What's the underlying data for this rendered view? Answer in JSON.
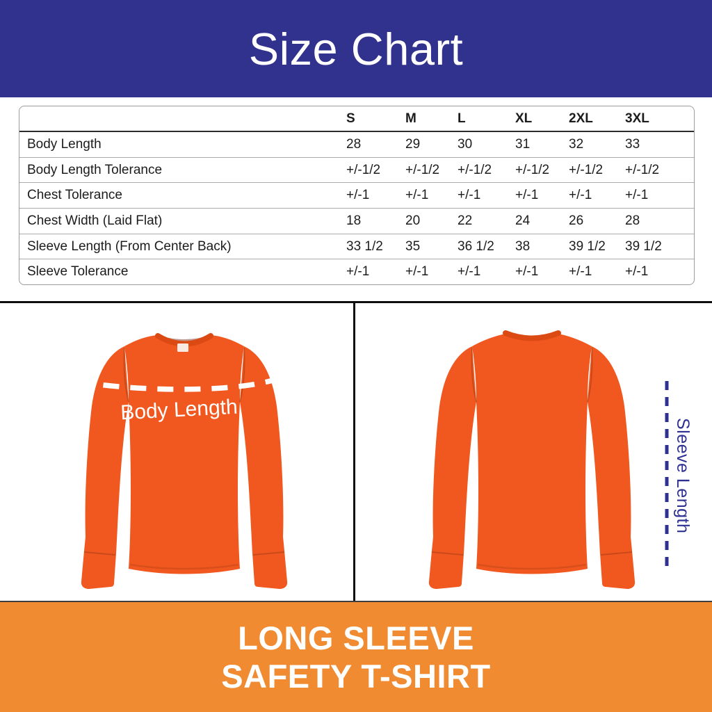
{
  "header": {
    "title": "Size Chart",
    "bg_color": "#31328E",
    "text_color": "#FFFFFF"
  },
  "size_table": {
    "columns": [
      "S",
      "M",
      "L",
      "XL",
      "2XL",
      "3XL"
    ],
    "rows": [
      {
        "label": "Body Length",
        "values": [
          "28",
          "29",
          "30",
          "31",
          "32",
          "33"
        ]
      },
      {
        "label": "Body Length Tolerance",
        "values": [
          "+/-1/2",
          "+/-1/2",
          "+/-1/2",
          "+/-1/2",
          "+/-1/2",
          "+/-1/2"
        ]
      },
      {
        "label": "Chest Tolerance",
        "values": [
          "+/-1",
          "+/-1",
          "+/-1",
          "+/-1",
          "+/-1",
          "+/-1"
        ]
      },
      {
        "label": "Chest Width (Laid Flat)",
        "values": [
          "18",
          "20",
          "22",
          "24",
          "26",
          "28"
        ]
      },
      {
        "label": "Sleeve Length (From Center Back)",
        "values": [
          "33 1/2",
          "35",
          "36 1/2",
          "38",
          "39 1/2",
          "39 1/2"
        ]
      },
      {
        "label": "Sleeve Tolerance",
        "values": [
          "+/-1",
          "+/-1",
          "+/-1",
          "+/-1",
          "+/-1",
          "+/-1"
        ]
      }
    ]
  },
  "diagram": {
    "front_measure_label": "Body Length",
    "back_measure_label": "Sleeve Length",
    "shirt_color": "#F1581F",
    "collar_shade_color": "#DC4A14",
    "front_line_color": "#FFFFFF",
    "back_line_color": "#2E3192",
    "back_label_color": "#2E3192"
  },
  "footer": {
    "line1": "LONG SLEEVE",
    "line2": "SAFETY T-SHIRT",
    "bg_color": "#F08B31",
    "text_color": "#FFFFFF"
  }
}
